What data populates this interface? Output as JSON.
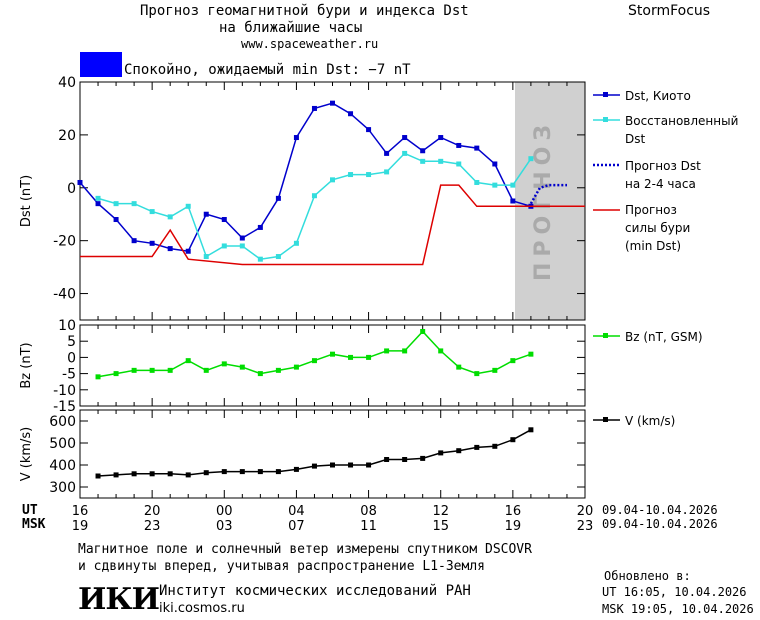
{
  "header": {
    "title_line1": "Прогноз геомагнитной бури и индекса Dst",
    "title_line2": "на ближайшие часы",
    "site": "www.spaceweather.ru",
    "brand": "StormFocus"
  },
  "status": {
    "text": "Спокойно, ожидаемый min Dst: −7 nT",
    "swatch_color": "#0000ff"
  },
  "legend": {
    "dst_kyoto": "Dst, Киото",
    "restored_line1": "Восстановленный",
    "restored_line2": "Dst",
    "forecast_dst_line1": "Прогноз Dst",
    "forecast_dst_line2": "на 2-4 часа",
    "storm_line1": "Прогноз",
    "storm_line2": "силы бури",
    "storm_line3": "(min Dst)",
    "bz": "Bz (nT, GSM)",
    "v": "V (km/s)"
  },
  "forecast_zone_label": "ПРОГНОЗ",
  "time_axis": {
    "ut_label": "UT",
    "msk_label": "MSK",
    "ut_ticks": [
      "16",
      "20",
      "00",
      "04",
      "08",
      "12",
      "16",
      "20"
    ],
    "msk_ticks": [
      "19",
      "23",
      "03",
      "07",
      "11",
      "15",
      "19",
      "23"
    ],
    "ut_dates": "09.04-10.04.2026",
    "msk_dates": "09.04-10.04.2026"
  },
  "footer": {
    "note_line1": "Магнитное поле и солнечный ветер измерены спутником DSCOVR",
    "note_line2": "и сдвинуты вперед, учитывая распространение L1-Земля",
    "logo_text": "ИКИ",
    "institute": "Институт космических исследований РАН",
    "institute_site": "iki.cosmos.ru",
    "updated_label": "Обновлено в:",
    "updated_ut": "UT  16:05, 10.04.2026",
    "updated_msk": "MSK 19:05, 10.04.2026"
  },
  "chart_data": [
    {
      "type": "line",
      "ylabel": "Dst (nT)",
      "xlim": [
        16,
        44
      ],
      "ylim": [
        -50,
        40
      ],
      "yticks": [
        40,
        20,
        0,
        -20,
        -40
      ],
      "forecast_region": [
        41,
        44
      ],
      "series": [
        {
          "name": "Dst, Киото",
          "color": "#0000cc",
          "x": [
            16,
            17,
            18,
            19,
            20,
            21,
            22,
            23,
            24,
            25,
            26,
            27,
            28,
            29,
            30,
            31,
            32,
            33,
            34,
            35,
            36,
            37,
            38,
            39,
            40,
            41
          ],
          "y": [
            2,
            -6,
            -12,
            -20,
            -21,
            -23,
            -24,
            -10,
            -12,
            -19,
            -15,
            -4,
            19,
            30,
            32,
            28,
            22,
            13,
            19,
            14,
            19,
            16,
            15,
            9,
            -5,
            -7
          ]
        },
        {
          "name": "Восстановленный Dst",
          "color": "#33dddd",
          "x": [
            17,
            18,
            19,
            20,
            21,
            22,
            23,
            24,
            25,
            26,
            27,
            28,
            29,
            30,
            31,
            32,
            33,
            34,
            35,
            36,
            37,
            38,
            39,
            40,
            41
          ],
          "y": [
            -4,
            -6,
            -6,
            -9,
            -11,
            -7,
            -26,
            -22,
            -22,
            -27,
            -26,
            -21,
            -3,
            3,
            5,
            5,
            6,
            13,
            10,
            10,
            9,
            2,
            1,
            1,
            11
          ]
        },
        {
          "name": "Прогноз Dst на 2-4 часа",
          "color": "#0000cc",
          "x": [
            41,
            41.5,
            42,
            43
          ],
          "y": [
            -6,
            0,
            1,
            1
          ]
        },
        {
          "name": "Прогноз силы бури (min Dst)",
          "color": "#dd0000",
          "x": [
            16,
            20,
            21,
            22,
            25,
            35,
            36,
            37,
            38,
            44
          ],
          "y": [
            -26,
            -26,
            -16,
            -27,
            -29,
            -29,
            1,
            1,
            -7,
            -7
          ]
        }
      ]
    },
    {
      "type": "line",
      "ylabel": "Bz (nT)",
      "xlim": [
        16,
        44
      ],
      "ylim": [
        -15,
        10
      ],
      "yticks": [
        10,
        5,
        0,
        -5,
        -10,
        -15
      ],
      "series": [
        {
          "name": "Bz (nT, GSM)",
          "color": "#00dd00",
          "x": [
            17,
            18,
            19,
            20,
            21,
            22,
            23,
            24,
            25,
            26,
            27,
            28,
            29,
            30,
            31,
            32,
            33,
            34,
            35,
            36,
            37,
            38,
            39,
            40,
            41
          ],
          "y": [
            -6,
            -5,
            -4,
            -4,
            -4,
            -1,
            -4,
            -2,
            -3,
            -5,
            -4,
            -3,
            -1,
            1,
            0,
            0,
            2,
            2,
            8,
            2,
            -3,
            -5,
            -4,
            -1,
            1
          ]
        }
      ]
    },
    {
      "type": "line",
      "ylabel": "V (km/s)",
      "xlim": [
        16,
        44
      ],
      "ylim": [
        250,
        650
      ],
      "yticks": [
        600,
        500,
        400,
        300
      ],
      "series": [
        {
          "name": "V (km/s)",
          "color": "#000000",
          "x": [
            17,
            18,
            19,
            20,
            21,
            22,
            23,
            24,
            25,
            26,
            27,
            28,
            29,
            30,
            31,
            32,
            33,
            34,
            35,
            36,
            37,
            38,
            39,
            40,
            41
          ],
          "y": [
            350,
            355,
            360,
            360,
            360,
            355,
            365,
            370,
            370,
            370,
            370,
            380,
            395,
            400,
            400,
            400,
            425,
            425,
            430,
            455,
            465,
            480,
            485,
            515,
            560
          ]
        }
      ]
    }
  ]
}
